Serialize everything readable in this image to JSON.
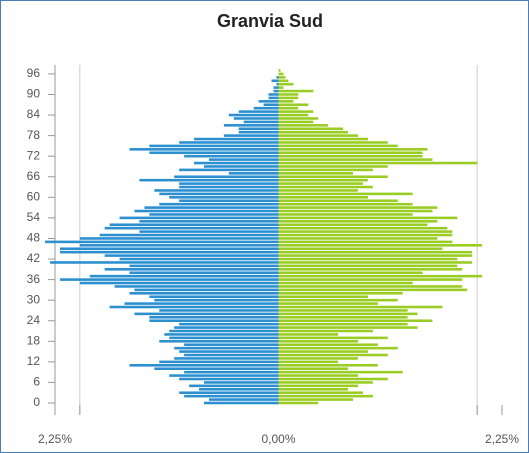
{
  "chart_data": {
    "type": "pyramid",
    "title": "Granvia Sud",
    "y": [
      0,
      1,
      2,
      3,
      4,
      5,
      6,
      7,
      8,
      9,
      10,
      11,
      12,
      13,
      14,
      15,
      16,
      17,
      18,
      19,
      20,
      21,
      22,
      23,
      24,
      25,
      26,
      27,
      28,
      29,
      30,
      31,
      32,
      33,
      34,
      35,
      36,
      37,
      38,
      39,
      40,
      41,
      42,
      43,
      44,
      45,
      46,
      47,
      48,
      49,
      50,
      51,
      52,
      53,
      54,
      55,
      56,
      57,
      58,
      59,
      60,
      61,
      62,
      63,
      64,
      65,
      66,
      67,
      68,
      69,
      70,
      71,
      72,
      73,
      74,
      75,
      76,
      77,
      78,
      79,
      80,
      81,
      82,
      83,
      84,
      85,
      86,
      87,
      88,
      89,
      90,
      91,
      92,
      93,
      94,
      95,
      96,
      97
    ],
    "series": [
      {
        "color": "#2b8fd0",
        "values": [
          0.75,
          0.7,
          0.95,
          1.0,
          0.8,
          0.9,
          0.75,
          1.0,
          1.1,
          0.95,
          1.25,
          1.5,
          1.2,
          1.05,
          0.95,
          1.0,
          1.05,
          0.95,
          1.2,
          1.1,
          1.15,
          1.1,
          1.05,
          1.0,
          1.3,
          1.3,
          1.45,
          1.2,
          1.7,
          1.55,
          1.25,
          1.3,
          1.5,
          1.45,
          1.65,
          2.0,
          2.2,
          1.9,
          1.5,
          1.75,
          1.5,
          2.3,
          1.6,
          1.75,
          2.2,
          2.2,
          2.0,
          2.35,
          2.0,
          1.8,
          1.4,
          1.75,
          1.7,
          1.4,
          1.6,
          1.3,
          1.45,
          1.35,
          1.2,
          1.0,
          1.1,
          1.2,
          1.25,
          1.0,
          1.0,
          1.4,
          1.05,
          0.5,
          1.0,
          0.75,
          0.85,
          0.7,
          0.95,
          1.3,
          1.5,
          1.3,
          1.0,
          0.85,
          0.55,
          0.4,
          0.4,
          0.55,
          0.35,
          0.45,
          0.5,
          0.4,
          0.25,
          0.15,
          0.2,
          0.1,
          0.1,
          0.05,
          0.05,
          0.02,
          0.07,
          0.02,
          0.0,
          0.0
        ]
      },
      {
        "color": "#9acd23",
        "values": [
          0.4,
          0.75,
          0.95,
          0.85,
          0.7,
          0.8,
          0.95,
          1.1,
          0.8,
          1.25,
          0.7,
          1.0,
          0.6,
          0.8,
          1.1,
          0.9,
          1.2,
          1.0,
          0.8,
          1.1,
          0.6,
          0.95,
          1.4,
          1.3,
          1.55,
          1.3,
          1.4,
          1.3,
          1.65,
          1.0,
          1.2,
          0.9,
          1.25,
          1.9,
          1.85,
          1.35,
          1.85,
          2.05,
          1.45,
          1.85,
          1.8,
          1.95,
          1.8,
          1.95,
          1.95,
          1.65,
          2.05,
          1.75,
          1.6,
          1.75,
          1.75,
          1.7,
          1.5,
          1.6,
          1.8,
          1.35,
          1.55,
          1.6,
          1.35,
          1.2,
          0.9,
          1.35,
          0.8,
          0.95,
          0.85,
          0.9,
          1.1,
          0.75,
          0.95,
          1.1,
          2.0,
          1.55,
          1.45,
          1.45,
          1.5,
          1.2,
          1.1,
          0.9,
          0.8,
          0.7,
          0.65,
          0.5,
          0.35,
          0.4,
          0.3,
          0.35,
          0.2,
          0.3,
          0.15,
          0.2,
          0.2,
          0.35,
          0.05,
          0.15,
          0.1,
          0.07,
          0.05,
          0.02
        ]
      }
    ],
    "xlim": [
      -2.25,
      2.25
    ],
    "xticks": [
      {
        "value": -2.25,
        "label": "2,25%"
      },
      {
        "value": 0,
        "label": "0,00%"
      },
      {
        "value": 2.25,
        "label": "2,25%"
      }
    ],
    "xgrid": [
      -2,
      2
    ],
    "ylim": [
      -3.5,
      98.6
    ],
    "yticks": [
      0,
      6,
      12,
      18,
      24,
      30,
      36,
      42,
      48,
      54,
      60,
      66,
      72,
      78,
      84,
      90,
      96
    ]
  }
}
